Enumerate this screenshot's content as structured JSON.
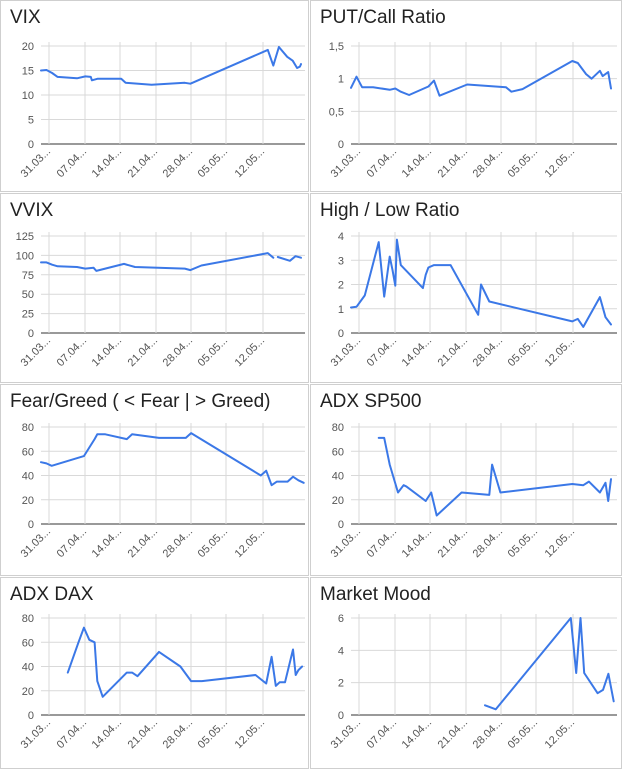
{
  "line_color": "#3b78e7",
  "grid_color": "#d9d9d9",
  "text_color": "#555555",
  "chart_data": [
    {
      "type": "line",
      "title": "VIX",
      "yticks": [
        "0",
        "5",
        "10",
        "15",
        "20"
      ],
      "ylim": [
        0,
        20
      ],
      "xticks": [
        "31.03...",
        "07.04...",
        "14.04...",
        "21.04...",
        "28.04...",
        "05.05...",
        "12.05..."
      ],
      "xlim": [
        0,
        47
      ],
      "grid": true,
      "points": [
        [
          0,
          15
        ],
        [
          1,
          15.1
        ],
        [
          2,
          14.5
        ],
        [
          3,
          13.7
        ],
        [
          6.5,
          13.4
        ],
        [
          8,
          13.8
        ],
        [
          9,
          13.7
        ],
        [
          9.2,
          13.0
        ],
        [
          10.2,
          13.3
        ],
        [
          14.5,
          13.3
        ],
        [
          15.3,
          12.5
        ],
        [
          20,
          12.1
        ],
        [
          26,
          12.5
        ],
        [
          27,
          12.3
        ],
        [
          41,
          19.2
        ],
        [
          42,
          16.0
        ],
        [
          43,
          19.8
        ],
        [
          44.5,
          17.8
        ],
        [
          45.5,
          17.0
        ],
        [
          46.3,
          15.5
        ],
        [
          46.8,
          15.8
        ],
        [
          47,
          16.3
        ]
      ]
    },
    {
      "type": "line",
      "title": "PUT/Call Ratio",
      "yticks": [
        "0",
        "0,5",
        "1",
        "1,5"
      ],
      "ylim": [
        0,
        1.5
      ],
      "xticks": [
        "31.03...",
        "07.04...",
        "14.04...",
        "21.04...",
        "28.04...",
        "05.05...",
        "12.05..."
      ],
      "xlim": [
        0,
        47
      ],
      "grid": true,
      "points": [
        [
          0,
          0.86
        ],
        [
          1,
          1.03
        ],
        [
          2,
          0.87
        ],
        [
          4,
          0.87
        ],
        [
          7,
          0.83
        ],
        [
          8,
          0.85
        ],
        [
          9,
          0.8
        ],
        [
          10.5,
          0.75
        ],
        [
          14,
          0.88
        ],
        [
          15,
          0.97
        ],
        [
          16,
          0.74
        ],
        [
          21,
          0.91
        ],
        [
          28,
          0.87
        ],
        [
          29,
          0.8
        ],
        [
          31,
          0.84
        ],
        [
          40,
          1.27
        ],
        [
          41,
          1.24
        ],
        [
          42.5,
          1.07
        ],
        [
          43.5,
          1.0
        ],
        [
          45,
          1.12
        ],
        [
          45.5,
          1.04
        ],
        [
          46.5,
          1.1
        ],
        [
          47,
          0.85
        ]
      ]
    },
    {
      "type": "line",
      "title": "VVIX",
      "yticks": [
        "0",
        "25",
        "50",
        "75",
        "100",
        "125"
      ],
      "ylim": [
        0,
        125
      ],
      "xticks": [
        "31.03...",
        "07.04...",
        "14.04...",
        "21.04...",
        "28.04...",
        "05.05...",
        "12.05..."
      ],
      "xlim": [
        0,
        47
      ],
      "grid": true,
      "points": [
        [
          0,
          91
        ],
        [
          1,
          91
        ],
        [
          2,
          88
        ],
        [
          3,
          86
        ],
        [
          6.5,
          85
        ],
        [
          8,
          83
        ],
        [
          9.5,
          84
        ],
        [
          10,
          80
        ],
        [
          15,
          89
        ],
        [
          17,
          85
        ],
        [
          26,
          83
        ],
        [
          27,
          81
        ],
        [
          29,
          87
        ],
        [
          41,
          103
        ],
        [
          42,
          97
        ],
        null,
        [
          42.8,
          98
        ],
        [
          45,
          93
        ],
        [
          46,
          99
        ],
        [
          47,
          97
        ]
      ]
    },
    {
      "type": "line",
      "title": "High / Low Ratio",
      "yticks": [
        "0",
        "1",
        "2",
        "3",
        "4"
      ],
      "ylim": [
        0,
        4
      ],
      "xticks": [
        "31.03...",
        "07.04...",
        "14.04...",
        "21.04...",
        "28.04...",
        "05.05...",
        "12.05..."
      ],
      "xlim": [
        0,
        47
      ],
      "grid": true,
      "points": [
        [
          0,
          1.05
        ],
        [
          1,
          1.08
        ],
        [
          2.5,
          1.55
        ],
        [
          5,
          3.75
        ],
        [
          6,
          1.5
        ],
        [
          7,
          3.15
        ],
        [
          7.5,
          2.6
        ],
        [
          8,
          1.95
        ],
        [
          8.3,
          3.85
        ],
        [
          9,
          2.8
        ],
        [
          13,
          1.85
        ],
        [
          13.5,
          2.4
        ],
        [
          14,
          2.7
        ],
        [
          15,
          2.8
        ],
        [
          18,
          2.8
        ],
        [
          23,
          0.75
        ],
        [
          23.5,
          2.0
        ],
        [
          25,
          1.3
        ],
        [
          40,
          0.48
        ],
        [
          41,
          0.58
        ],
        [
          42,
          0.25
        ],
        [
          45,
          1.48
        ],
        [
          46,
          0.65
        ],
        [
          47,
          0.35
        ]
      ]
    },
    {
      "type": "line",
      "title": "Fear/Greed ( < Fear | > Greed)",
      "yticks": [
        "0",
        "20",
        "40",
        "60",
        "80"
      ],
      "ylim": [
        0,
        80
      ],
      "xticks": [
        "31.03...",
        "07.04...",
        "14.04...",
        "21.04...",
        "28.04...",
        "05.05...",
        "12.05..."
      ],
      "xlim": [
        0,
        47
      ],
      "grid": true,
      "points": [
        [
          0,
          51
        ],
        [
          1,
          50
        ],
        [
          2,
          48
        ],
        [
          8,
          56
        ],
        [
          10,
          70
        ],
        [
          10.5,
          74
        ],
        [
          12,
          74
        ],
        [
          16,
          70
        ],
        [
          17,
          74
        ],
        [
          22,
          71
        ],
        [
          27,
          71
        ],
        [
          28,
          75
        ],
        [
          41,
          40
        ],
        [
          42,
          44
        ],
        [
          43,
          32
        ],
        [
          44,
          35
        ],
        [
          46,
          35
        ],
        [
          47,
          39
        ],
        [
          48,
          36
        ],
        [
          49,
          34
        ]
      ],
      "xlim_note": ""
    },
    {
      "type": "line",
      "title": "ADX SP500",
      "yticks": [
        "0",
        "20",
        "40",
        "60",
        "80"
      ],
      "ylim": [
        0,
        80
      ],
      "xticks": [
        "31.03...",
        "07.04...",
        "14.04...",
        "21.04...",
        "28.04...",
        "05.05...",
        "12.05..."
      ],
      "xlim": [
        0,
        47
      ],
      "grid": true,
      "points": [
        [
          5,
          71
        ],
        [
          6,
          71
        ],
        [
          7,
          49
        ],
        [
          8.5,
          26
        ],
        [
          9.5,
          32
        ],
        [
          10,
          31
        ],
        [
          13.5,
          19
        ],
        [
          14.5,
          26
        ],
        [
          15.5,
          7
        ],
        [
          20,
          26
        ],
        [
          25,
          24
        ],
        [
          25.5,
          49
        ],
        [
          27,
          26
        ],
        [
          40,
          33
        ],
        [
          42,
          32
        ],
        [
          43,
          35
        ],
        [
          45,
          26
        ],
        [
          46,
          34
        ],
        [
          46.5,
          19
        ],
        [
          47,
          37
        ]
      ]
    },
    {
      "type": "line",
      "title": "ADX DAX",
      "yticks": [
        "0",
        "20",
        "40",
        "60",
        "80"
      ],
      "ylim": [
        0,
        80
      ],
      "xticks": [
        "31.03...",
        "07.04...",
        "14.04...",
        "21.04...",
        "28.04...",
        "05.05...",
        "12.05..."
      ],
      "xlim": [
        0,
        47
      ],
      "grid": true,
      "points": [
        [
          5,
          35
        ],
        [
          7,
          60
        ],
        [
          8,
          72
        ],
        [
          9,
          62
        ],
        [
          10,
          60
        ],
        [
          10.5,
          28
        ],
        [
          11.5,
          15
        ],
        [
          16,
          35
        ],
        [
          17,
          35
        ],
        [
          18,
          32
        ],
        [
          22,
          52
        ],
        [
          26,
          40
        ],
        [
          28,
          28
        ],
        [
          30,
          28
        ],
        [
          40,
          33
        ],
        [
          42,
          26
        ],
        [
          43,
          48
        ],
        [
          43.8,
          24
        ],
        [
          44.5,
          27
        ],
        [
          45.5,
          27
        ],
        [
          47,
          54
        ],
        [
          47.5,
          33
        ],
        [
          48,
          37
        ],
        [
          48.7,
          40
        ]
      ]
    },
    {
      "type": "line",
      "title": "Market Mood",
      "yticks": [
        "0",
        "2",
        "4",
        "6"
      ],
      "ylim": [
        0,
        6
      ],
      "xticks": [
        "31.03...",
        "07.04...",
        "14.04...",
        "21.04...",
        "28.04...",
        "05.05...",
        "12.05..."
      ],
      "xlim": [
        0,
        47
      ],
      "grid": true,
      "points": [
        [
          25,
          0.6
        ],
        [
          27,
          0.35
        ],
        [
          41,
          6.0
        ],
        [
          42,
          2.6
        ],
        [
          42.8,
          6.0
        ],
        [
          43.5,
          2.6
        ],
        [
          46,
          1.35
        ],
        [
          47,
          1.55
        ],
        [
          48,
          2.55
        ],
        [
          49,
          0.85
        ]
      ]
    }
  ]
}
